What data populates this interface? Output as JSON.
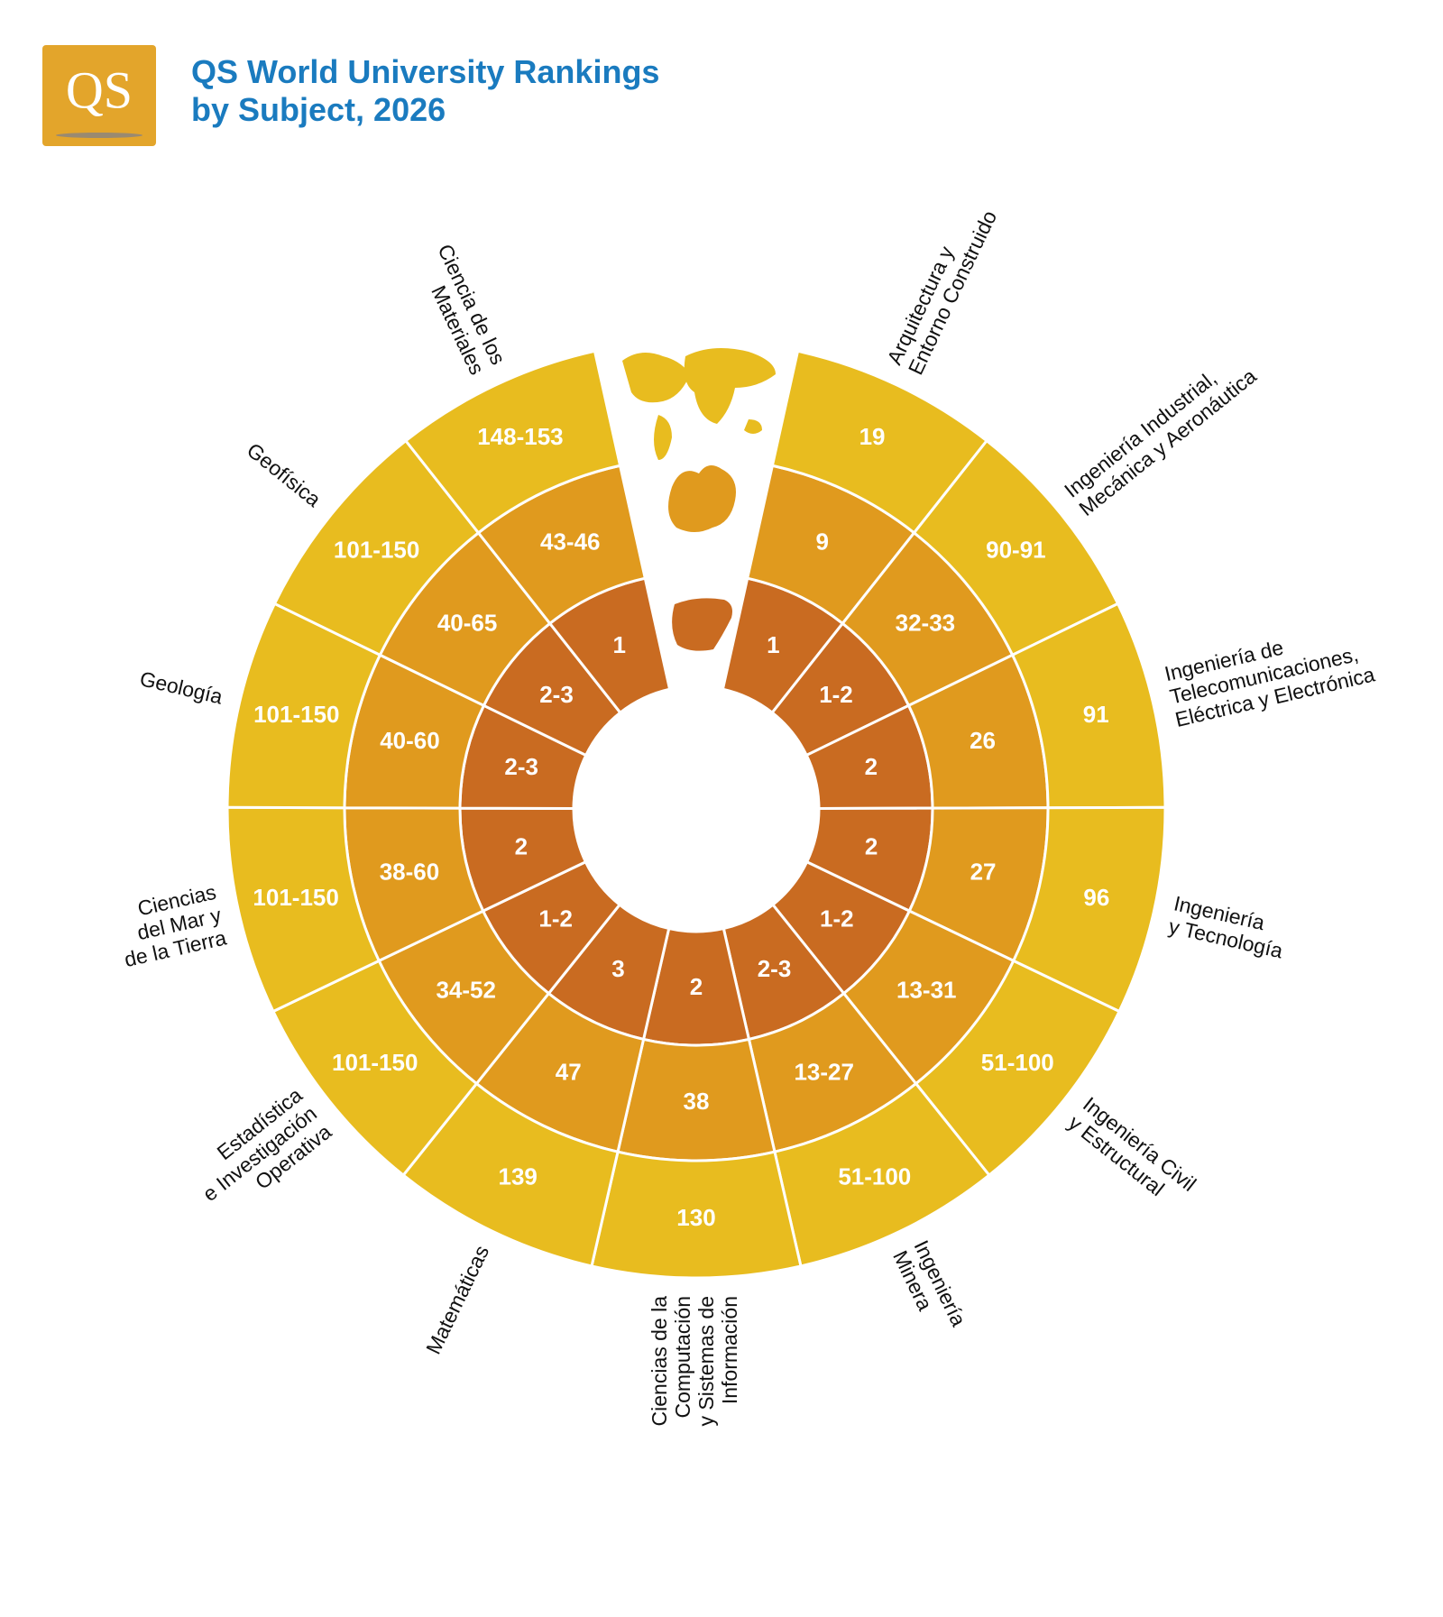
{
  "header": {
    "logo": "QS",
    "title": [
      "QS World University Rankings",
      "by Subject, 2026"
    ]
  },
  "subjects": [
    {
      "label": [
        "Arquitectura y",
        "Entorno Construido"
      ],
      "world": "19",
      "europe": "9",
      "spain": "1"
    },
    {
      "label": [
        "Ingeniería Industrial,",
        "Mecánica y Aeronáutica"
      ],
      "world": "90-91",
      "europe": "32-33",
      "spain": "1-2"
    },
    {
      "label": [
        "Ingeniería de",
        "Telecomunicaciones,",
        "Eléctrica y Electrónica"
      ],
      "world": "91",
      "europe": "26",
      "spain": "2"
    },
    {
      "label": [
        "Ingeniería",
        "y Tecnología"
      ],
      "world": "96",
      "europe": "27",
      "spain": "2"
    },
    {
      "label": [
        "Ingeniería Civil",
        "y Estructural"
      ],
      "world": "51-100",
      "europe": "13-31",
      "spain": "1-2"
    },
    {
      "label": [
        "Ingeniería",
        "Minera"
      ],
      "world": "51-100",
      "europe": "13-27",
      "spain": "2-3"
    },
    {
      "label": [
        "Ciencias de la",
        "Computación",
        "y Sistemas de",
        "Información"
      ],
      "world": "130",
      "europe": "38",
      "spain": "2"
    },
    {
      "label": [
        "Matemáticas"
      ],
      "world": "139",
      "europe": "47",
      "spain": "3"
    },
    {
      "label": [
        "Estadística",
        "e Investigación",
        "Operativa"
      ],
      "world": "101-150",
      "europe": "34-52",
      "spain": "1-2"
    },
    {
      "label": [
        "Ciencias",
        "del Mar y",
        "de la Tierra"
      ],
      "world": "101-150",
      "europe": "38-60",
      "spain": "2"
    },
    {
      "label": [
        "Geología"
      ],
      "world": "101-150",
      "europe": "40-60",
      "spain": "2-3"
    },
    {
      "label": [
        "Geofísica"
      ],
      "world": "101-150",
      "europe": "40-65",
      "spain": "2-3"
    },
    {
      "label": [
        "Ciencia de los",
        "Materiales"
      ],
      "world": "148-153",
      "europe": "43-46",
      "spain": "1"
    }
  ]
}
